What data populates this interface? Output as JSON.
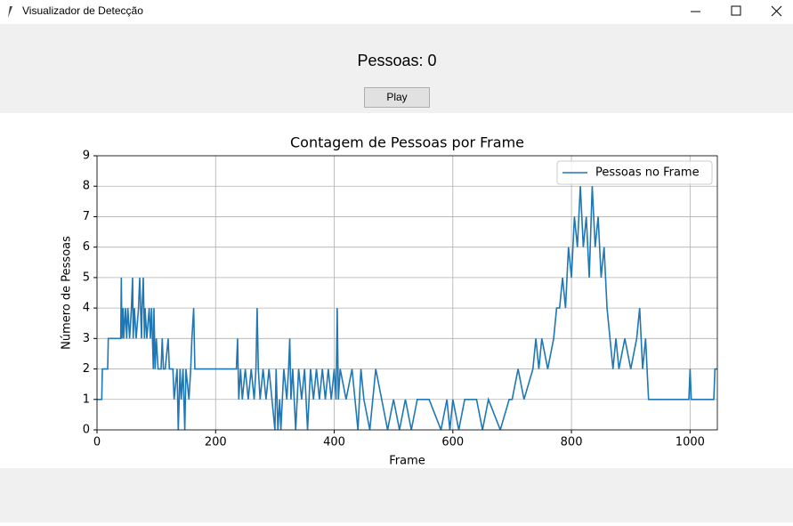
{
  "window": {
    "title": "Visualizador de Detecção"
  },
  "header": {
    "label": "Pessoas: 0",
    "button": "Play"
  },
  "chart_data": {
    "type": "line",
    "title": "Contagem de Pessoas por Frame",
    "x_label": "Frame",
    "y_label": "Número de Pessoas",
    "x": [
      0,
      8,
      9,
      18,
      19,
      40,
      41,
      42,
      44,
      45,
      48,
      50,
      52,
      55,
      58,
      60,
      61,
      63,
      66,
      70,
      72,
      75,
      76,
      78,
      80,
      81,
      84,
      88,
      90,
      92,
      95,
      96,
      98,
      100,
      103,
      108,
      110,
      112,
      115,
      120,
      122,
      128,
      130,
      135,
      137,
      140,
      142,
      145,
      148,
      150,
      155,
      158,
      160,
      163,
      165,
      168,
      170,
      200,
      235,
      237,
      239,
      242,
      245,
      250,
      255,
      260,
      265,
      268,
      270,
      272,
      275,
      280,
      285,
      290,
      295,
      300,
      302,
      305,
      308,
      310,
      315,
      320,
      323,
      325,
      327,
      330,
      335,
      340,
      345,
      350,
      355,
      360,
      365,
      370,
      375,
      380,
      385,
      390,
      395,
      400,
      403,
      405,
      407,
      410,
      420,
      430,
      440,
      445,
      450,
      460,
      470,
      480,
      490,
      500,
      510,
      520,
      530,
      540,
      560,
      580,
      590,
      595,
      600,
      610,
      620,
      640,
      650,
      660,
      680,
      695,
      700,
      710,
      720,
      735,
      740,
      745,
      750,
      760,
      770,
      775,
      780,
      785,
      790,
      795,
      800,
      805,
      810,
      815,
      820,
      825,
      830,
      835,
      840,
      845,
      850,
      855,
      860,
      865,
      870,
      875,
      880,
      890,
      900,
      910,
      915,
      920,
      925,
      930,
      950,
      970,
      998,
      1000,
      1002,
      1020,
      1040,
      1042,
      1046
    ],
    "series": [
      {
        "name": "Pessoas no Frame",
        "color": "#1f77b4",
        "values": [
          1,
          1,
          2,
          2,
          3,
          3,
          5,
          3,
          4,
          3,
          4,
          3,
          4,
          3,
          4,
          5,
          3,
          4,
          3,
          4,
          5,
          3,
          4,
          5,
          3,
          4,
          3,
          4,
          3,
          4,
          2,
          4,
          2,
          3,
          2,
          2,
          3,
          2,
          2,
          3,
          2,
          2,
          1,
          2,
          0,
          2,
          1,
          2,
          0,
          2,
          1,
          2,
          3,
          4,
          2,
          2,
          2,
          2,
          2,
          3,
          1,
          2,
          1,
          2,
          1,
          2,
          1,
          2,
          4,
          2,
          1,
          2,
          1,
          2,
          1,
          0,
          2,
          0,
          1,
          0,
          2,
          1,
          2,
          3,
          1,
          2,
          0,
          2,
          1,
          2,
          0,
          2,
          1,
          2,
          1,
          2,
          1,
          2,
          1,
          2,
          1,
          4,
          1,
          2,
          1,
          2,
          0,
          2,
          1,
          0,
          2,
          1,
          0,
          1,
          0,
          1,
          0,
          1,
          1,
          0,
          1,
          0,
          1,
          0,
          1,
          1,
          0,
          1,
          0,
          1,
          1,
          2,
          1,
          2,
          3,
          2,
          3,
          2,
          3,
          4,
          4,
          5,
          4,
          6,
          5,
          7,
          6,
          8,
          6,
          7,
          5,
          8,
          6,
          7,
          5,
          6,
          4,
          3,
          2,
          3,
          2,
          3,
          2,
          3,
          4,
          2,
          3,
          1,
          1,
          1,
          1,
          2,
          1,
          1,
          1,
          2,
          2
        ]
      }
    ],
    "xlim": [
      0,
      1046
    ],
    "ylim": [
      0,
      9
    ],
    "xticks": [
      0,
      200,
      400,
      600,
      800,
      1000
    ],
    "yticks": [
      0,
      1,
      2,
      3,
      4,
      5,
      6,
      7,
      8,
      9
    ],
    "grid": true,
    "legend": "upper right"
  }
}
